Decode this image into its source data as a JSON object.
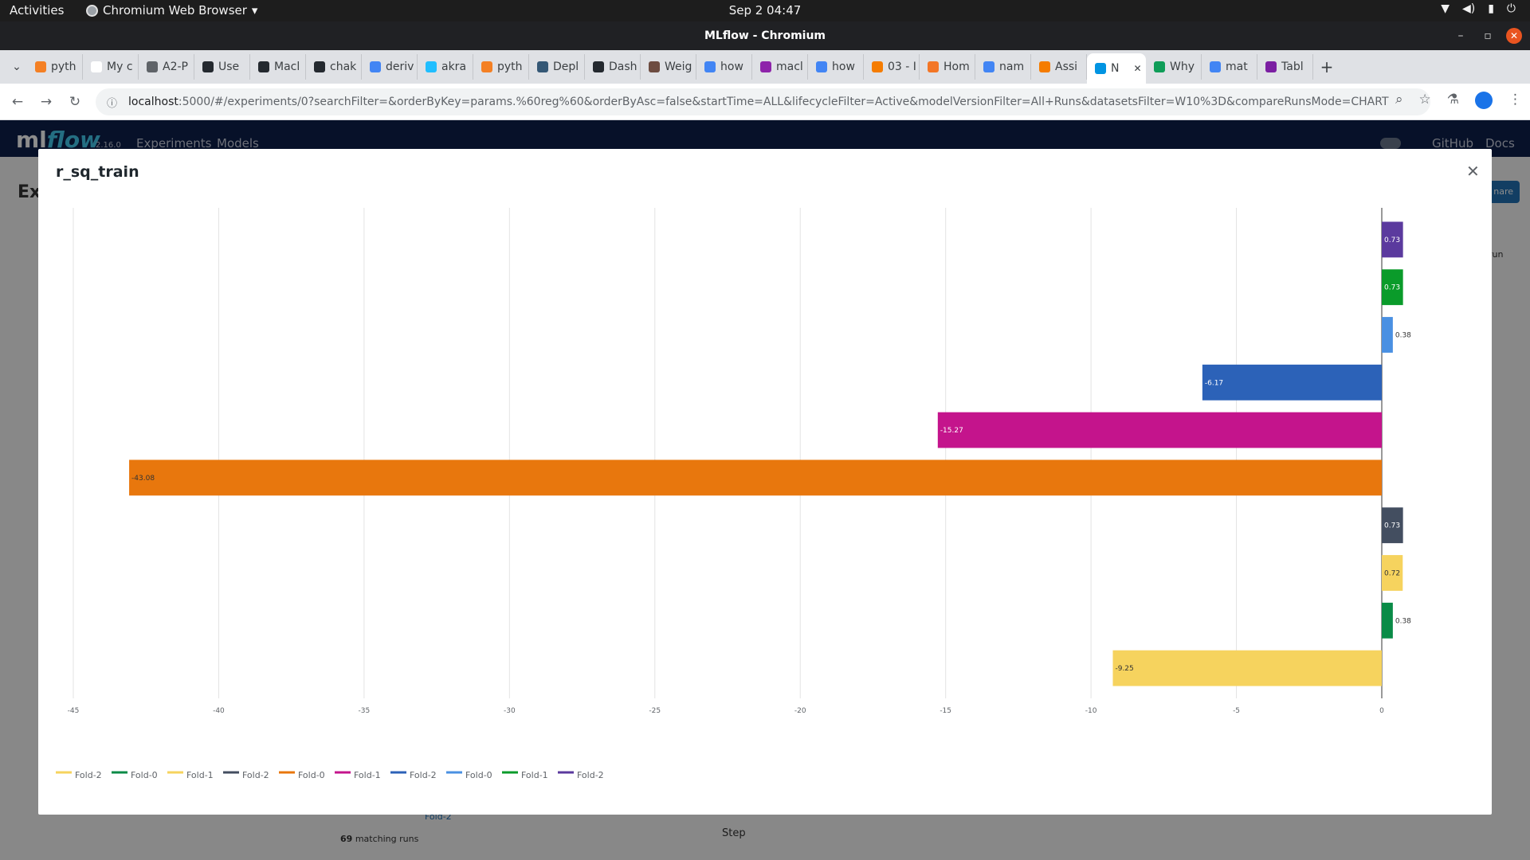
{
  "os": {
    "activities": "Activities",
    "app_menu": "Chromium Web Browser",
    "clock": "Sep 2  04:47"
  },
  "window": {
    "title": "MLflow - Chromium"
  },
  "tabs": [
    {
      "label": "pyth",
      "icon": "stackoverflow-icon",
      "color": "#f48024"
    },
    {
      "label": "My c",
      "icon": "blank-page-icon",
      "color": "#ffffff"
    },
    {
      "label": "A2-P",
      "icon": "globe-icon",
      "color": "#5f6368"
    },
    {
      "label": "Use",
      "icon": "github-icon",
      "color": "#24292f"
    },
    {
      "label": "Macl",
      "icon": "github-icon",
      "color": "#24292f"
    },
    {
      "label": "chak",
      "icon": "github-icon",
      "color": "#24292f"
    },
    {
      "label": "deriv",
      "icon": "google-icon",
      "color": "#4285f4"
    },
    {
      "label": "akra",
      "icon": "kaggle-icon",
      "color": "#20beff"
    },
    {
      "label": "pyth",
      "icon": "stackoverflow-icon",
      "color": "#f48024"
    },
    {
      "label": "Depl",
      "icon": "tds-icon",
      "color": "#355876"
    },
    {
      "label": "Dash",
      "icon": "github-icon",
      "color": "#24292f"
    },
    {
      "label": "Weig",
      "icon": "image-icon",
      "color": "#6d4c41"
    },
    {
      "label": "how",
      "icon": "google-icon",
      "color": "#4285f4"
    },
    {
      "label": "macl",
      "icon": "app-icon",
      "color": "#8e24aa"
    },
    {
      "label": "how",
      "icon": "google-icon",
      "color": "#4285f4"
    },
    {
      "label": "03 - I",
      "icon": "notebook-icon",
      "color": "#f57c00"
    },
    {
      "label": "Hom",
      "icon": "jupyter-icon",
      "color": "#f37626"
    },
    {
      "label": "nam",
      "icon": "google-icon",
      "color": "#4285f4"
    },
    {
      "label": "Assi",
      "icon": "notebook-icon",
      "color": "#f57c00"
    },
    {
      "label": "N",
      "icon": "mlflow-icon",
      "color": "#0194e2",
      "active": true
    },
    {
      "label": "Why",
      "icon": "sheet-icon",
      "color": "#0f9d58"
    },
    {
      "label": "mat",
      "icon": "google-icon",
      "color": "#4285f4"
    },
    {
      "label": "Tabl",
      "icon": "tableau-icon",
      "color": "#7b1fa2"
    }
  ],
  "address": {
    "host": "localhost",
    "path": ":5000/#/experiments/0?searchFilter=&orderByKey=params.%60reg%60&orderByAsc=false&startTime=ALL&lifecycleFilter=Active&modelVersionFilter=All+Runs&datasetsFilter=W10%3D&compareRunsMode=CHART"
  },
  "mlflow": {
    "logo_ml": "ml",
    "logo_flow": "flow",
    "version": "2.16.0",
    "nav_experiments": "Experiments",
    "nav_models": "Models",
    "nav_github": "GitHub",
    "nav_docs": "Docs",
    "page_title_fragment": "Ex",
    "compare_button_fragment": "nare",
    "new_run_fragment": "run",
    "matching_runs_count": "69",
    "matching_runs_text": "matching runs",
    "run_row_label": "Fold-2",
    "step_label": "Step"
  },
  "modal": {
    "title": "r_sq_train"
  },
  "chart_data": {
    "type": "bar",
    "orientation": "horizontal",
    "title": "r_sq_train",
    "xlim": [
      -45,
      0
    ],
    "xticks": [
      -45,
      -40,
      -35,
      -30,
      -25,
      -20,
      -15,
      -10,
      -5,
      0
    ],
    "grid": true,
    "legend_placement": "bottom-left",
    "bars": [
      {
        "value": 0.73,
        "label": "0.73",
        "color": "#5b3a9e"
      },
      {
        "value": 0.73,
        "label": "0.73",
        "color": "#0a9b2a"
      },
      {
        "value": 0.38,
        "label": "0.38",
        "color": "#4a90e2"
      },
      {
        "value": -6.17,
        "label": "-6.17",
        "color": "#2c62b8"
      },
      {
        "value": -15.27,
        "label": "-15.27",
        "color": "#c4148c"
      },
      {
        "value": -43.08,
        "label": "-43.08",
        "color": "#e8770d"
      },
      {
        "value": 0.73,
        "label": "0.73",
        "color": "#434e60"
      },
      {
        "value": 0.72,
        "label": "0.72",
        "color": "#f6d35e"
      },
      {
        "value": 0.38,
        "label": "0.38",
        "color": "#0a8b47"
      },
      {
        "value": -9.25,
        "label": "-9.25",
        "color": "#f6d35e"
      }
    ],
    "legend": [
      {
        "name": "Fold-2",
        "color": "#f6d35e"
      },
      {
        "name": "Fold-0",
        "color": "#0a8b47"
      },
      {
        "name": "Fold-1",
        "color": "#f6d35e"
      },
      {
        "name": "Fold-2",
        "color": "#434e60"
      },
      {
        "name": "Fold-0",
        "color": "#e8770d"
      },
      {
        "name": "Fold-1",
        "color": "#c4148c"
      },
      {
        "name": "Fold-2",
        "color": "#2c62b8"
      },
      {
        "name": "Fold-0",
        "color": "#4a90e2"
      },
      {
        "name": "Fold-1",
        "color": "#0a9b2a"
      },
      {
        "name": "Fold-2",
        "color": "#5b3a9e"
      }
    ]
  }
}
